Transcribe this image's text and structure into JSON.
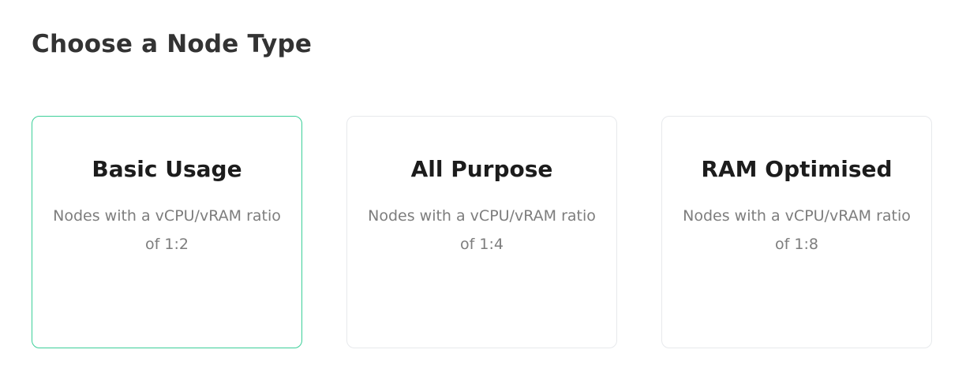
{
  "header": {
    "title": "Choose a Node Type"
  },
  "node_types": [
    {
      "name": "Basic Usage",
      "description": "Nodes with a vCPU/vRAM ratio of 1:2",
      "selected": true
    },
    {
      "name": "All Purpose",
      "description": "Nodes with a vCPU/vRAM ratio of 1:4",
      "selected": false
    },
    {
      "name": "RAM Optimised",
      "description": "Nodes with a vCPU/vRAM ratio of 1:8",
      "selected": false
    }
  ],
  "colors": {
    "selected_border": "#3ccf99",
    "card_border": "#e7e9ec",
    "title_text": "#333333",
    "description_text": "#7d7d7d"
  }
}
